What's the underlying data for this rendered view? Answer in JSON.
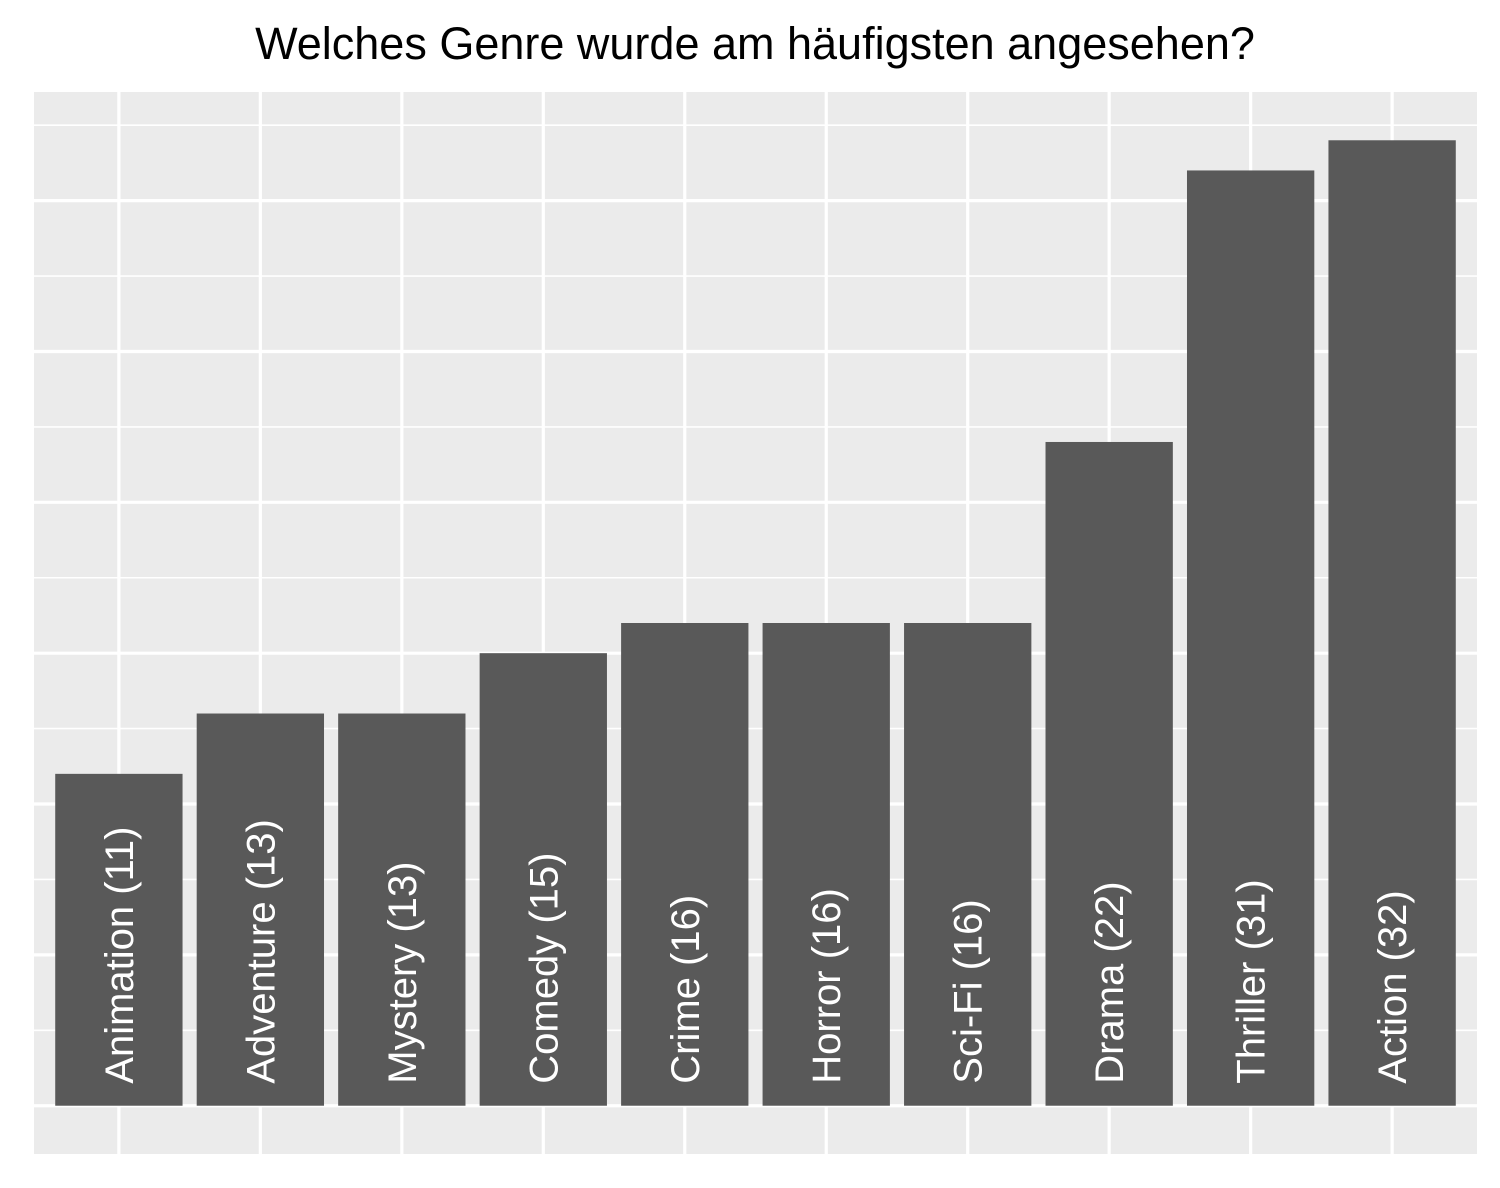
{
  "chart_data": {
    "type": "bar",
    "title": "Welches Genre wurde am häufigsten angesehen?",
    "xlabel": "",
    "ylabel": "",
    "categories": [
      "Animation",
      "Adventure",
      "Mystery",
      "Comedy",
      "Crime",
      "Horror",
      "Sci-Fi",
      "Drama",
      "Thriller",
      "Action"
    ],
    "values": [
      11,
      13,
      13,
      15,
      16,
      16,
      16,
      22,
      31,
      32
    ],
    "bar_labels": [
      "Animation (11)",
      "Adventure (13)",
      "Mystery (13)",
      "Comedy (15)",
      "Crime (16)",
      "Horror (16)",
      "Sci-Fi (16)",
      "Drama (22)",
      "Thriller (31)",
      "Action (32)"
    ],
    "ylim": [
      -1.6,
      33.6
    ],
    "y_gridlines": [
      0,
      5,
      10,
      15,
      20,
      25,
      30
    ],
    "y_minor_gridlines": [
      2.5,
      7.5,
      12.5,
      17.5,
      22.5,
      27.5,
      32.5
    ],
    "axis_tick_labels_shown": false,
    "grid": true,
    "legend": "none",
    "colors": {
      "panel_background": "#EBEBEB",
      "grid": "#FFFFFF",
      "bar": "#595959",
      "bar_label_text": "#FFFFFF",
      "title_text": "#000000"
    }
  }
}
